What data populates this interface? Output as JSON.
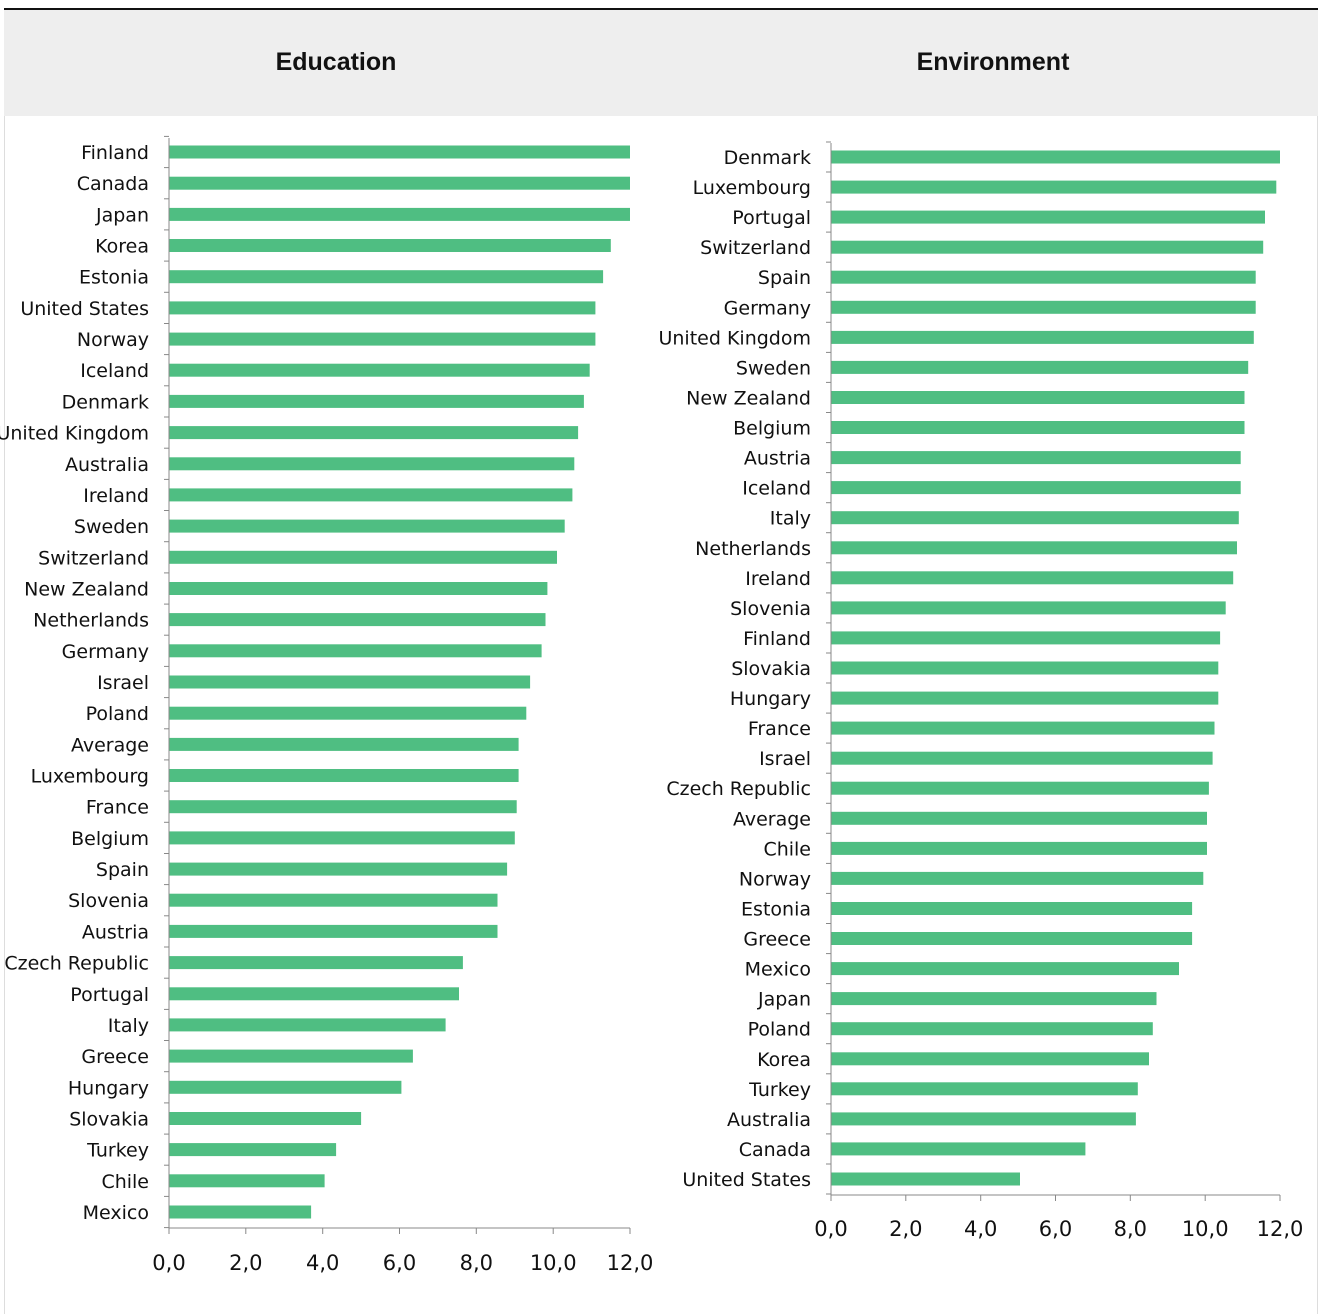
{
  "charts": {
    "education": {
      "title": "Education"
    },
    "environment": {
      "title": "Environment"
    }
  },
  "colors": {
    "bar": "#4fbe82",
    "axis": "#888888",
    "text": "#111111",
    "header_bg": "#eeeeee"
  },
  "chart_data": [
    {
      "type": "bar",
      "orientation": "horizontal",
      "title": "Education",
      "xlim": [
        0,
        12
      ],
      "xticks": [
        "0,0",
        "2,0",
        "4,0",
        "6,0",
        "8,0",
        "10,0",
        "12,0"
      ],
      "categories": [
        "Finland",
        "Canada",
        "Japan",
        "Korea",
        "Estonia",
        "United States",
        "Norway",
        "Iceland",
        "Denmark",
        "United Kingdom",
        "Australia",
        "Ireland",
        "Sweden",
        "Switzerland",
        "New Zealand",
        "Netherlands",
        "Germany",
        "Israel",
        "Poland",
        "Average",
        "Luxembourg",
        "France",
        "Belgium",
        "Spain",
        "Slovenia",
        "Austria",
        "Czech Republic",
        "Portugal",
        "Italy",
        "Greece",
        "Hungary",
        "Slovakia",
        "Turkey",
        "Chile",
        "Mexico"
      ],
      "values": [
        12.0,
        12.0,
        12.0,
        11.5,
        11.3,
        11.1,
        11.1,
        10.95,
        10.8,
        10.65,
        10.55,
        10.5,
        10.3,
        10.1,
        9.85,
        9.8,
        9.7,
        9.4,
        9.3,
        9.1,
        9.1,
        9.05,
        9.0,
        8.8,
        8.55,
        8.55,
        7.65,
        7.55,
        7.2,
        6.35,
        6.05,
        5.0,
        4.35,
        4.05,
        3.7
      ],
      "grid": false
    },
    {
      "type": "bar",
      "orientation": "horizontal",
      "title": "Environment",
      "xlim": [
        0,
        12
      ],
      "xticks": [
        "0,0",
        "2,0",
        "4,0",
        "6,0",
        "8,0",
        "10,0",
        "12,0"
      ],
      "categories": [
        "Denmark",
        "Luxembourg",
        "Portugal",
        "Switzerland",
        "Spain",
        "Germany",
        "United Kingdom",
        "Sweden",
        "New Zealand",
        "Belgium",
        "Austria",
        "Iceland",
        "Italy",
        "Netherlands",
        "Ireland",
        "Slovenia",
        "Finland",
        "Slovakia",
        "Hungary",
        "France",
        "Israel",
        "Czech Republic",
        "Average",
        "Chile",
        "Norway",
        "Estonia",
        "Greece",
        "Mexico",
        "Japan",
        "Poland",
        "Korea",
        "Turkey",
        "Australia",
        "Canada",
        "United States"
      ],
      "values": [
        12.0,
        11.9,
        11.6,
        11.55,
        11.35,
        11.35,
        11.3,
        11.15,
        11.05,
        11.05,
        10.95,
        10.95,
        10.9,
        10.85,
        10.75,
        10.55,
        10.4,
        10.35,
        10.35,
        10.25,
        10.2,
        10.1,
        10.05,
        10.05,
        9.95,
        9.65,
        9.65,
        9.3,
        8.7,
        8.6,
        8.5,
        8.2,
        8.15,
        6.8,
        5.05
      ],
      "grid": false
    }
  ]
}
